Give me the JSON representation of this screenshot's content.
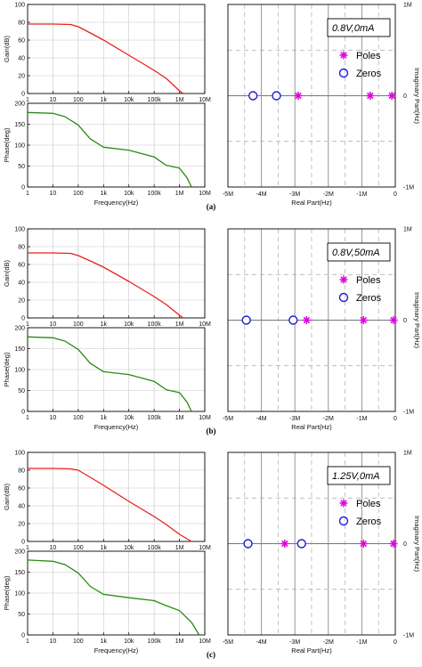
{
  "colors": {
    "gain": "#e8201c",
    "phase": "#2a8a12",
    "poles": "#e000e0",
    "zeros": "#1c1cd8",
    "grid": "#9a9a9a",
    "axis": "#000000"
  },
  "shared": {
    "freq_ticks": [
      "1",
      "10",
      "100",
      "1k",
      "10k",
      "100k",
      "1M",
      "10M"
    ],
    "gain_yticks": [
      "0",
      "20",
      "40",
      "60",
      "80",
      "100"
    ],
    "phase_yticks": [
      "0",
      "50",
      "100",
      "150",
      "200"
    ],
    "gain_ylabel": "Gain(dB)",
    "phase_ylabel": "Phase(deg)",
    "freq_xlabel": "Frequency(Hz)",
    "pz_xlabel": "Real Part(Hz)",
    "pz_ylabel": "Imaginary Part(Hz)",
    "pz_xticks": [
      "-5M",
      "-4M",
      "-3M",
      "-2M",
      "-1M",
      "0"
    ],
    "pz_yticks": [
      "1M",
      "0",
      "-1M"
    ],
    "legend_poles": "Poles",
    "legend_zeros": "Zeros"
  },
  "chart_data": [
    {
      "type": "line",
      "panel": "(a)",
      "plot": "gain",
      "x_scale": "log",
      "xlim": [
        1,
        10000000
      ],
      "ylim": [
        0,
        100
      ],
      "x": [
        1,
        10,
        50,
        100,
        300,
        1000,
        10000,
        100000,
        300000,
        1000000,
        1400000
      ],
      "y": [
        78,
        78,
        77.5,
        75,
        68,
        60,
        43,
        26,
        17,
        3,
        0
      ]
    },
    {
      "type": "line",
      "panel": "(a)",
      "plot": "phase",
      "x_scale": "log",
      "xlim": [
        1,
        10000000
      ],
      "ylim": [
        0,
        200
      ],
      "x": [
        1,
        10,
        30,
        100,
        300,
        1000,
        10000,
        100000,
        300000,
        1000000,
        2000000,
        3000000
      ],
      "y": [
        178,
        176,
        168,
        148,
        115,
        95,
        88,
        72,
        52,
        45,
        22,
        0
      ]
    },
    {
      "type": "scatter",
      "panel": "(a)",
      "plot": "pole-zero",
      "annotation": "0.8V,0mA",
      "xlim": [
        -5000000,
        0
      ],
      "ylim": [
        -1000000,
        1000000
      ],
      "poles": [
        [
          -2900000,
          0
        ],
        [
          -750000,
          0
        ],
        [
          -100000,
          0
        ]
      ],
      "zeros": [
        [
          -4250000,
          0
        ],
        [
          -3550000,
          0
        ]
      ]
    },
    {
      "type": "line",
      "panel": "(b)",
      "plot": "gain",
      "x_scale": "log",
      "xlim": [
        1,
        10000000
      ],
      "ylim": [
        0,
        100
      ],
      "x": [
        1,
        10,
        50,
        100,
        300,
        1000,
        10000,
        100000,
        300000,
        1000000,
        1400000
      ],
      "y": [
        73,
        73,
        72.5,
        70,
        64,
        57,
        41,
        24,
        15,
        3,
        0
      ]
    },
    {
      "type": "line",
      "panel": "(b)",
      "plot": "phase",
      "x_scale": "log",
      "xlim": [
        1,
        10000000
      ],
      "ylim": [
        0,
        200
      ],
      "x": [
        1,
        10,
        30,
        100,
        300,
        1000,
        10000,
        100000,
        300000,
        1000000,
        2000000,
        3000000
      ],
      "y": [
        178,
        176,
        168,
        148,
        115,
        95,
        88,
        72,
        52,
        45,
        22,
        0
      ]
    },
    {
      "type": "scatter",
      "panel": "(b)",
      "plot": "pole-zero",
      "annotation": "0.8V,50mA",
      "xlim": [
        -5000000,
        0
      ],
      "ylim": [
        -1000000,
        1000000
      ],
      "poles": [
        [
          -2650000,
          0
        ],
        [
          -950000,
          0
        ],
        [
          -50000,
          0
        ]
      ],
      "zeros": [
        [
          -4450000,
          0
        ],
        [
          -3050000,
          0
        ]
      ]
    },
    {
      "type": "line",
      "panel": "(c)",
      "plot": "gain",
      "x_scale": "log",
      "xlim": [
        1,
        10000000
      ],
      "ylim": [
        0,
        100
      ],
      "x": [
        1,
        10,
        50,
        100,
        300,
        1000,
        10000,
        100000,
        300000,
        1000000,
        3000000
      ],
      "y": [
        82,
        82,
        81.5,
        80,
        72,
        63,
        45,
        28,
        19,
        8,
        0
      ]
    },
    {
      "type": "line",
      "panel": "(c)",
      "plot": "phase",
      "x_scale": "log",
      "xlim": [
        1,
        10000000
      ],
      "ylim": [
        0,
        200
      ],
      "x": [
        1,
        10,
        30,
        100,
        300,
        1000,
        10000,
        100000,
        300000,
        1000000,
        3000000,
        6000000
      ],
      "y": [
        179,
        176,
        168,
        148,
        116,
        97,
        89,
        82,
        70,
        58,
        30,
        0
      ]
    },
    {
      "type": "scatter",
      "panel": "(c)",
      "plot": "pole-zero",
      "annotation": "1.25V,0mA",
      "xlim": [
        -5000000,
        0
      ],
      "ylim": [
        -1000000,
        1000000
      ],
      "poles": [
        [
          -3300000,
          0
        ],
        [
          -950000,
          0
        ],
        [
          -50000,
          0
        ]
      ],
      "zeros": [
        [
          -4400000,
          0
        ],
        [
          -2800000,
          0
        ]
      ]
    }
  ]
}
